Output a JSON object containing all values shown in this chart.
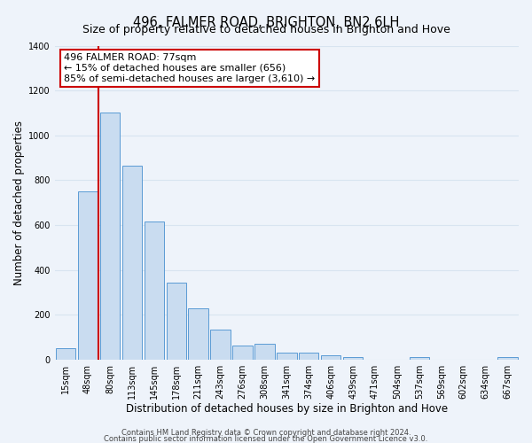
{
  "title": "496, FALMER ROAD, BRIGHTON, BN2 6LH",
  "subtitle": "Size of property relative to detached houses in Brighton and Hove",
  "xlabel": "Distribution of detached houses by size in Brighton and Hove",
  "ylabel": "Number of detached properties",
  "bar_labels": [
    "15sqm",
    "48sqm",
    "80sqm",
    "113sqm",
    "145sqm",
    "178sqm",
    "211sqm",
    "243sqm",
    "276sqm",
    "308sqm",
    "341sqm",
    "374sqm",
    "406sqm",
    "439sqm",
    "471sqm",
    "504sqm",
    "537sqm",
    "569sqm",
    "602sqm",
    "634sqm",
    "667sqm"
  ],
  "bar_values": [
    50,
    750,
    1100,
    865,
    615,
    345,
    228,
    133,
    65,
    73,
    30,
    30,
    20,
    14,
    0,
    0,
    12,
    0,
    0,
    0,
    12
  ],
  "bar_color": "#c9dcf0",
  "bar_edge_color": "#5b9bd5",
  "ylim": [
    0,
    1400
  ],
  "yticks": [
    0,
    200,
    400,
    600,
    800,
    1000,
    1200,
    1400
  ],
  "vline_x": 1.5,
  "vline_color": "#cc0000",
  "annotation_title": "496 FALMER ROAD: 77sqm",
  "annotation_line1": "← 15% of detached houses are smaller (656)",
  "annotation_line2": "85% of semi-detached houses are larger (3,610) →",
  "annotation_box_color": "#ffffff",
  "annotation_box_edge": "#cc0000",
  "footer1": "Contains HM Land Registry data © Crown copyright and database right 2024.",
  "footer2": "Contains public sector information licensed under the Open Government Licence v3.0.",
  "bg_color": "#eef3fa",
  "plot_bg_color": "#eef3fa",
  "grid_color": "#d8e4f0",
  "title_fontsize": 10.5,
  "subtitle_fontsize": 9,
  "xlabel_fontsize": 8.5,
  "ylabel_fontsize": 8.5,
  "tick_fontsize": 7,
  "annotation_fontsize": 8,
  "footer_fontsize": 6
}
